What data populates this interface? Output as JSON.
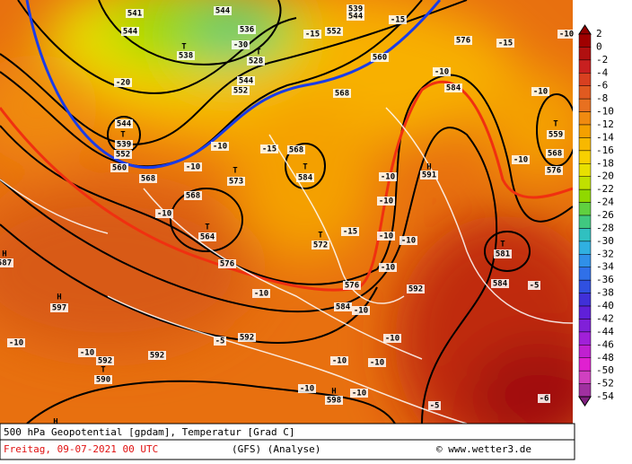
{
  "map": {
    "labels": [
      "541",
      "544",
      "544",
      "536",
      "T",
      "538",
      "-30",
      "T",
      "528",
      "-15",
      "552",
      "539",
      "544",
      "-15",
      "560",
      "576",
      "-15",
      "-10",
      "-20",
      "544",
      "552",
      "568",
      "-10",
      "584",
      "-10",
      "544",
      "T",
      "539",
      "552",
      "560",
      "568",
      "-10",
      "-10",
      "T",
      "573",
      "-15",
      "568",
      "T",
      "584",
      "H",
      "591",
      "T",
      "559",
      "568",
      "576",
      "-10",
      "-10",
      "568",
      "-10",
      "T",
      "564",
      "-10",
      "T",
      "572",
      "-15",
      "-10",
      "-10",
      "T",
      "581",
      "576",
      "-10",
      "H",
      "587",
      "576",
      "592",
      "584",
      "-5",
      "-10",
      "H",
      "597",
      "584",
      "-10",
      "-10",
      "-5",
      "592",
      "-10",
      "592",
      "T",
      "590",
      "592",
      "-10",
      "-10",
      "-10",
      "-10",
      "H",
      "598",
      "-10",
      "-5",
      "-6",
      "H"
    ]
  },
  "colorbar": {
    "labels": [
      2,
      0,
      -2,
      -4,
      -6,
      -8,
      -10,
      -12,
      -14,
      -16,
      -18,
      -20,
      -22,
      -24,
      -26,
      -28,
      -30,
      -32,
      -34,
      -36,
      -38,
      -40,
      -42,
      -44,
      -46,
      -48,
      -50,
      -52,
      -54
    ]
  },
  "footer": {
    "title": "500 hPa Geopotential [gpdam], Temperatur [Grad C]",
    "date": "Freitag, 09-07-2021  00 UTC",
    "model": "(GFS)  (Analyse)",
    "copyright": "© www.wetter3.de"
  }
}
